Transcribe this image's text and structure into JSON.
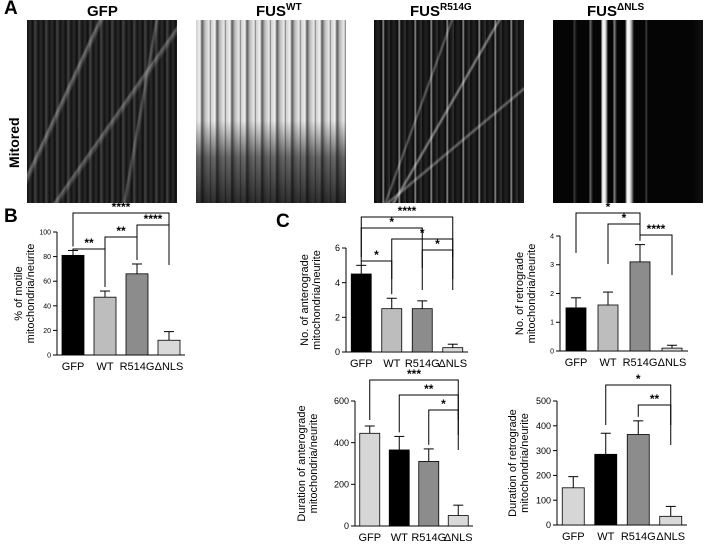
{
  "panels": {
    "a": "A",
    "b": "B",
    "c": "C"
  },
  "kymographs": {
    "row_label": "Mitored",
    "titles": [
      {
        "base": "GFP",
        "sup": ""
      },
      {
        "base": "FUS",
        "sup": "WT"
      },
      {
        "base": "FUS",
        "sup": "R514G"
      },
      {
        "base": "FUS",
        "sup": "ΔNLS"
      }
    ]
  },
  "colors": {
    "GFP": "#000000",
    "WT": "#bdbdbd",
    "R514G": "#8c8c8c",
    "dNLS": "#d9d9d9",
    "GFP_light": "#d6d6d6"
  },
  "chart_data": [
    {
      "id": "B",
      "type": "bar",
      "ylabel": "% of motile mitochondria/neurite",
      "categories": [
        "GFP",
        "WT",
        "R514G",
        "ΔNLS"
      ],
      "values": [
        81,
        47,
        66,
        12
      ],
      "errors": [
        4,
        5,
        8,
        7
      ],
      "fills": [
        "#000000",
        "#bdbdbd",
        "#8c8c8c",
        "#d9d9d9"
      ],
      "ylim": [
        0,
        100
      ],
      "yticks": [
        0,
        20,
        40,
        60,
        80,
        100
      ],
      "significance": [
        {
          "from": 0,
          "to": 1,
          "label": "**"
        },
        {
          "from": 1,
          "to": 2,
          "label": "**"
        },
        {
          "from": 2,
          "to": 3,
          "label": "****"
        },
        {
          "from": 0,
          "to": 3,
          "label": "****"
        }
      ]
    },
    {
      "id": "C1",
      "type": "bar",
      "ylabel": "No. of anterograde mitochondria/neurite",
      "categories": [
        "GFP",
        "WT",
        "R514G",
        "ΔNLS"
      ],
      "values": [
        4.5,
        2.5,
        2.5,
        0.25
      ],
      "errors": [
        0.5,
        0.6,
        0.45,
        0.2
      ],
      "fills": [
        "#000000",
        "#bdbdbd",
        "#8c8c8c",
        "#d9d9d9"
      ],
      "ylim": [
        0,
        6
      ],
      "yticks": [
        0,
        2,
        4,
        6
      ],
      "significance": [
        {
          "from": 0,
          "to": 1,
          "label": "*"
        },
        {
          "from": 2,
          "to": 3,
          "label": "*"
        },
        {
          "from": 1,
          "to": 3,
          "label": "*"
        },
        {
          "from": 0,
          "to": 2,
          "label": "*"
        },
        {
          "from": 0,
          "to": 3,
          "label": "****"
        }
      ]
    },
    {
      "id": "C2",
      "type": "bar",
      "ylabel": "No. of retrograde mitochondria/neurite",
      "categories": [
        "GFP",
        "WT",
        "R514G",
        "ΔNLS"
      ],
      "values": [
        1.5,
        1.6,
        3.1,
        0.1
      ],
      "errors": [
        0.35,
        0.45,
        0.6,
        0.1
      ],
      "fills": [
        "#000000",
        "#bdbdbd",
        "#8c8c8c",
        "#d9d9d9"
      ],
      "ylim": [
        0,
        4
      ],
      "yticks": [
        0,
        1,
        2,
        3,
        4
      ],
      "significance": [
        {
          "from": 2,
          "to": 3,
          "label": "****"
        },
        {
          "from": 1,
          "to": 2,
          "label": "*"
        },
        {
          "from": 0,
          "to": 2,
          "label": "*"
        }
      ]
    },
    {
      "id": "C3",
      "type": "bar",
      "ylabel": "Duration of anterograde mitochondria/neurite",
      "categories": [
        "GFP",
        "WT",
        "R514G",
        "ΔNLS"
      ],
      "values": [
        445,
        365,
        310,
        50
      ],
      "errors": [
        35,
        65,
        60,
        50
      ],
      "fills": [
        "#d6d6d6",
        "#000000",
        "#8c8c8c",
        "#d9d9d9"
      ],
      "ylim": [
        0,
        600
      ],
      "yticks": [
        0,
        200,
        400,
        600
      ],
      "significance": [
        {
          "from": 2,
          "to": 3,
          "label": "*"
        },
        {
          "from": 1,
          "to": 3,
          "label": "**"
        },
        {
          "from": 0,
          "to": 3,
          "label": "***"
        }
      ]
    },
    {
      "id": "C4",
      "type": "bar",
      "ylabel": "Duration of retrograde mitochondria/neurite",
      "categories": [
        "GFP",
        "WT",
        "R514G",
        "ΔNLS"
      ],
      "values": [
        150,
        285,
        365,
        35
      ],
      "errors": [
        45,
        85,
        55,
        40
      ],
      "fills": [
        "#d6d6d6",
        "#000000",
        "#8c8c8c",
        "#d9d9d9"
      ],
      "ylim": [
        0,
        500
      ],
      "yticks": [
        0,
        100,
        200,
        300,
        400,
        500
      ],
      "significance": [
        {
          "from": 2,
          "to": 3,
          "label": "**"
        },
        {
          "from": 1,
          "to": 3,
          "label": "*"
        }
      ]
    }
  ]
}
